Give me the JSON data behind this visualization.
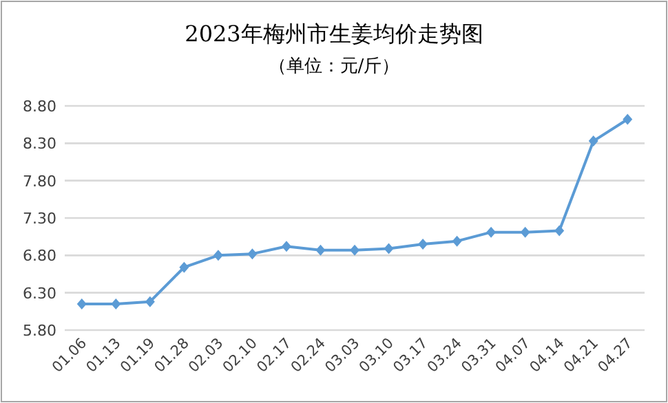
{
  "chart_data": {
    "type": "line",
    "title": "2023年梅州市生姜均价走势图",
    "subtitle": "（单位：元/斤）",
    "categories": [
      "01.06",
      "01.13",
      "01.19",
      "01.28",
      "02.03",
      "02.10",
      "02.17",
      "02.24",
      "03.03",
      "03.10",
      "03.17",
      "03.24",
      "03.31",
      "04.07",
      "04.14",
      "04.21",
      "04.27"
    ],
    "series": [
      {
        "color": "#5b9bd5",
        "values": [
          6.15,
          6.15,
          6.18,
          6.64,
          6.8,
          6.82,
          6.92,
          6.87,
          6.87,
          6.89,
          6.95,
          6.99,
          7.11,
          7.11,
          7.13,
          8.33,
          8.62
        ]
      }
    ],
    "ylim": [
      5.8,
      8.8
    ],
    "yticks": [
      {
        "value": 5.8,
        "label": "5.80"
      },
      {
        "value": 6.3,
        "label": "6.30"
      },
      {
        "value": 6.8,
        "label": "6.80"
      },
      {
        "value": 7.3,
        "label": "7.30"
      },
      {
        "value": 7.8,
        "label": "7.80"
      },
      {
        "value": 8.3,
        "label": "8.30"
      },
      {
        "value": 8.8,
        "label": "8.80"
      }
    ],
    "grid": "y",
    "marker": "diamond"
  }
}
